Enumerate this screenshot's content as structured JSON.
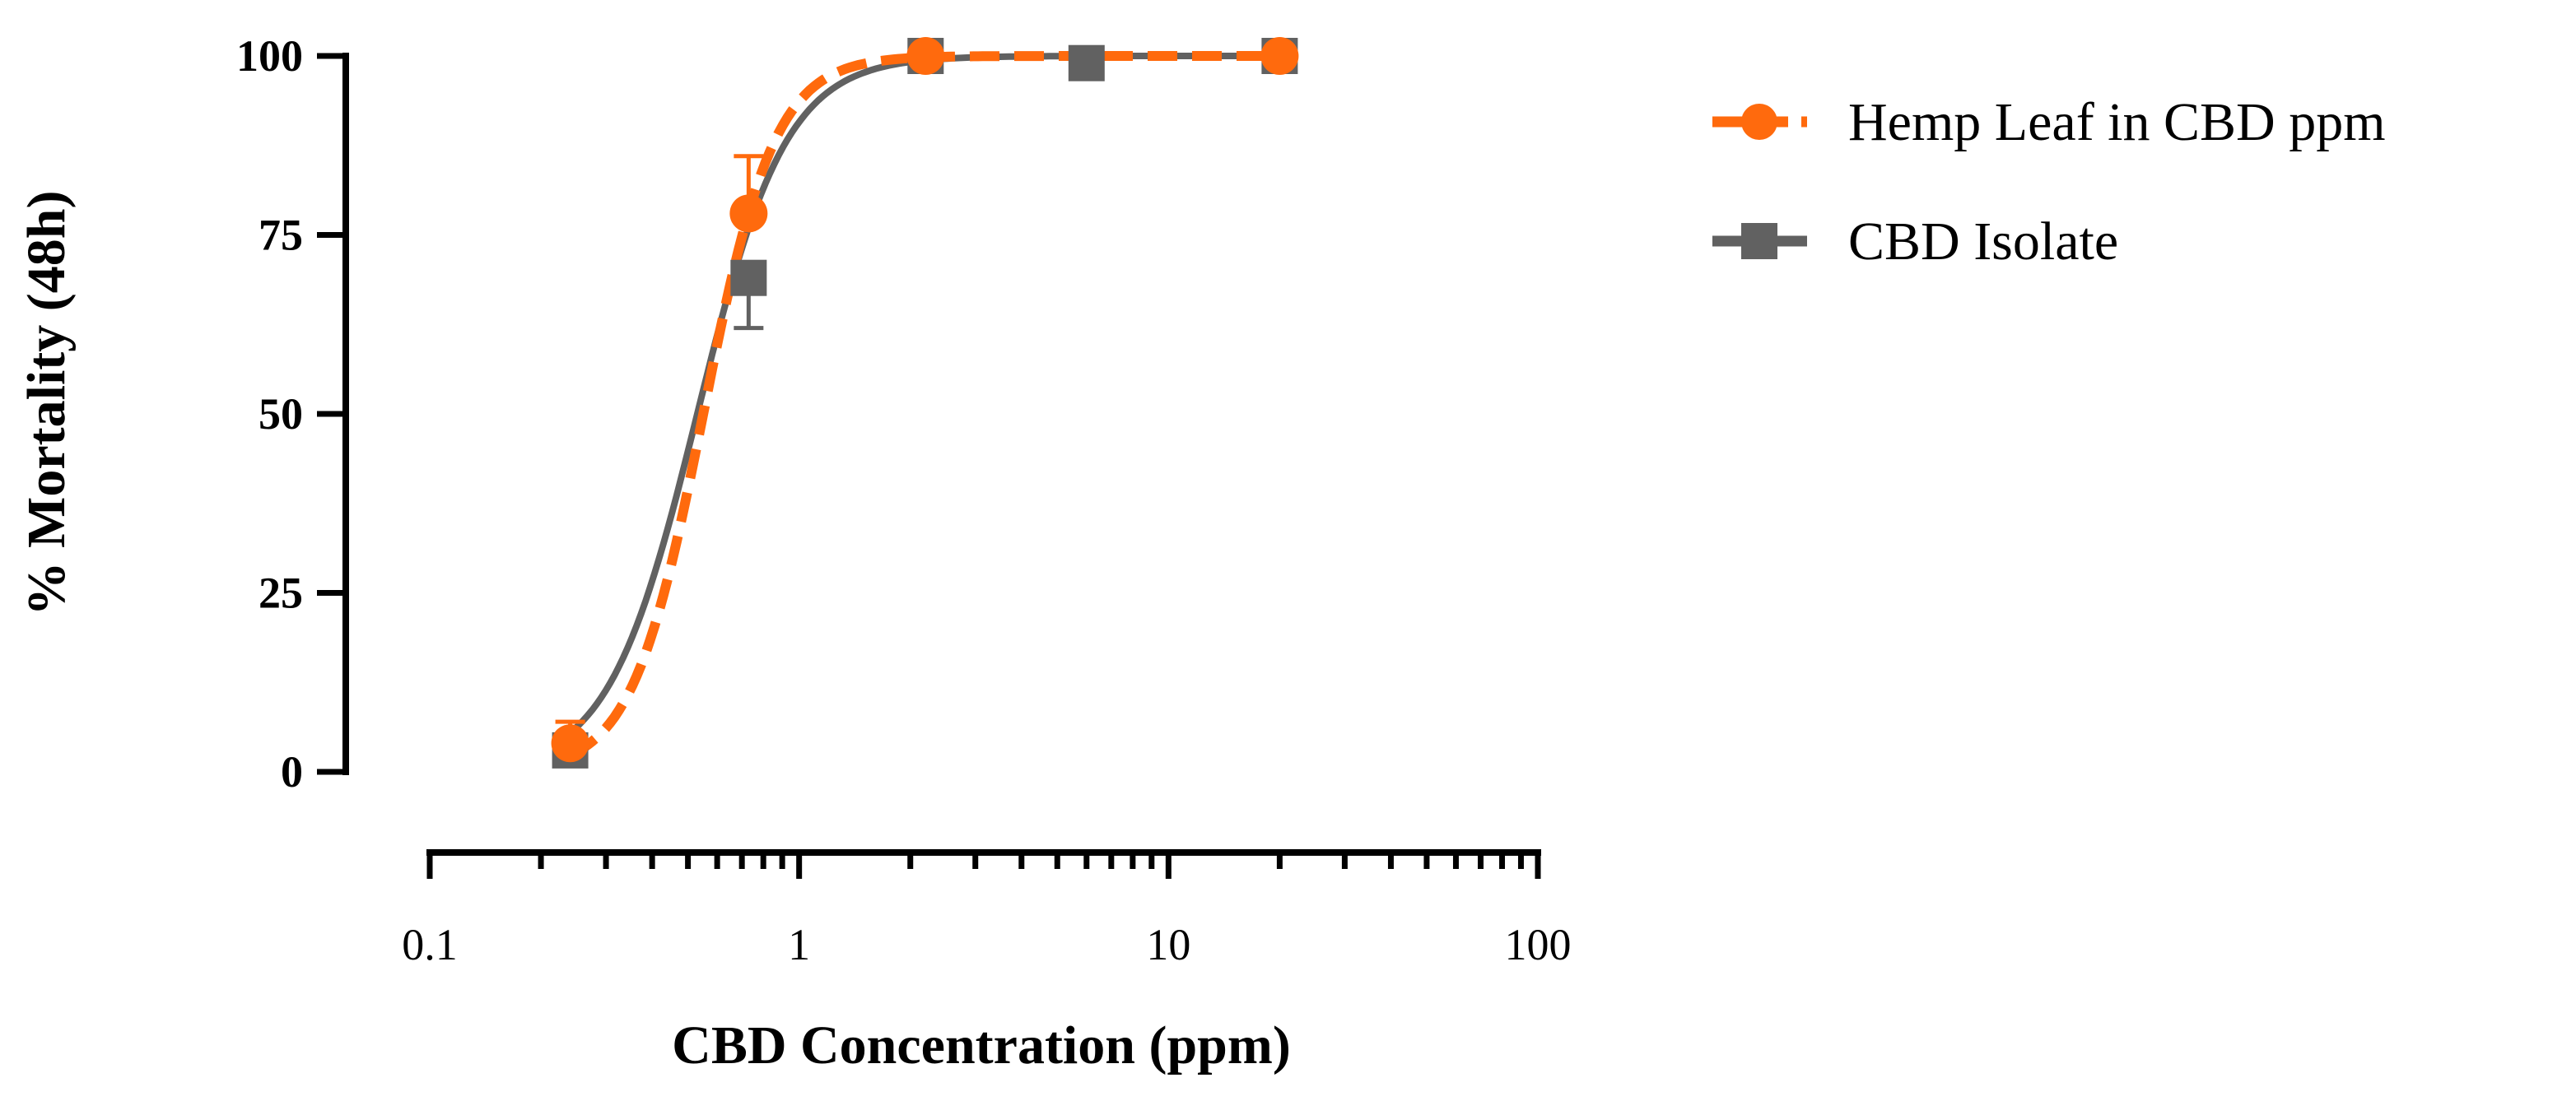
{
  "chart_data": {
    "type": "line",
    "ylabel": "% Mortality (48h)",
    "xlabel": "CBD Concentration (ppm)",
    "x_scale": "log",
    "xlim": [
      0.1,
      100
    ],
    "ylim": [
      0,
      100
    ],
    "y_ticks": [
      0,
      25,
      50,
      75,
      100
    ],
    "x_ticks": [
      0.1,
      1,
      10,
      100
    ],
    "x_tick_labels": [
      "0.1",
      "1",
      "10",
      "100"
    ],
    "y_tick_labels": [
      "0",
      "25",
      "50",
      "75",
      "100"
    ],
    "legend_position": "top-right, outside plot",
    "series": [
      {
        "name": "Hemp Leaf in CBD ppm",
        "color": "#FF6A0D",
        "marker": "circle",
        "line_style": "dashed",
        "points": [
          {
            "x": 0.24,
            "y": 4,
            "err": 3
          },
          {
            "x": 0.73,
            "y": 78,
            "err": 8
          },
          {
            "x": 2.2,
            "y": 100,
            "err": 0
          },
          {
            "x": 20,
            "y": 100,
            "err": 0
          }
        ],
        "fit": {
          "ec50": 0.55,
          "hill": 4.5
        }
      },
      {
        "name": "CBD Isolate",
        "color": "#616161",
        "marker": "square",
        "line_style": "solid",
        "points": [
          {
            "x": 0.24,
            "y": 3,
            "err": 2
          },
          {
            "x": 0.73,
            "y": 69,
            "err": 7
          },
          {
            "x": 2.2,
            "y": 100,
            "err": 0
          },
          {
            "x": 6,
            "y": 99,
            "err": 0
          },
          {
            "x": 20,
            "y": 100,
            "err": 0
          }
        ],
        "fit": {
          "ec50": 0.53,
          "hill": 3.6
        }
      }
    ]
  }
}
